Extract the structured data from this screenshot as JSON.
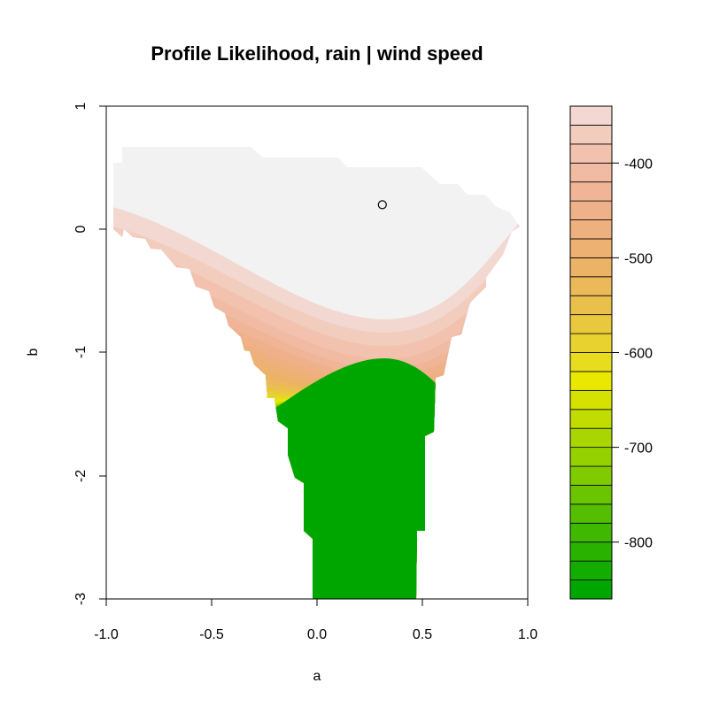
{
  "chart_data": {
    "type": "filled-contour",
    "title": "Profile Likelihood, rain | wind speed",
    "xlabel": "a",
    "ylabel": "b",
    "xlim": [
      -1.0,
      1.0
    ],
    "ylim": [
      -3,
      1
    ],
    "x_ticks": [
      "-1.0",
      "-0.5",
      "0.0",
      "0.5",
      "1.0"
    ],
    "y_ticks": [
      "-3",
      "-2",
      "-1",
      "0",
      "1"
    ],
    "maximum_marker": {
      "a": 0.31,
      "b": 0.2
    },
    "valley": {
      "center_a": 0.32,
      "top_b": -0.3
    },
    "colorbar": {
      "range": [
        -860,
        -340
      ],
      "ticks": [
        "-800",
        "-700",
        "-600",
        "-500",
        "-400"
      ],
      "levels": [
        -860,
        -840,
        -820,
        -800,
        -780,
        -760,
        -740,
        -720,
        -700,
        -680,
        -660,
        -640,
        -620,
        -600,
        -580,
        -560,
        -540,
        -520,
        -500,
        -480,
        -460,
        -440,
        -420,
        -400,
        -380,
        -360,
        -340
      ],
      "colors": [
        "#00A600",
        "#15AC00",
        "#2AB200",
        "#40B800",
        "#55BE00",
        "#6AC400",
        "#80CA00",
        "#95D000",
        "#AAD600",
        "#C0DC00",
        "#D5E200",
        "#EAE800",
        "#E8DC1F",
        "#E8D22F",
        "#E9C83E",
        "#EAC04C",
        "#EBB85A",
        "#ECB266",
        "#EDB172",
        "#EEB07E",
        "#EFB18A",
        "#F0B496",
        "#F1BAA2",
        "#F2C2AF",
        "#F2CCBC",
        "#F2D8D1",
        "#F2F2F2"
      ]
    }
  }
}
